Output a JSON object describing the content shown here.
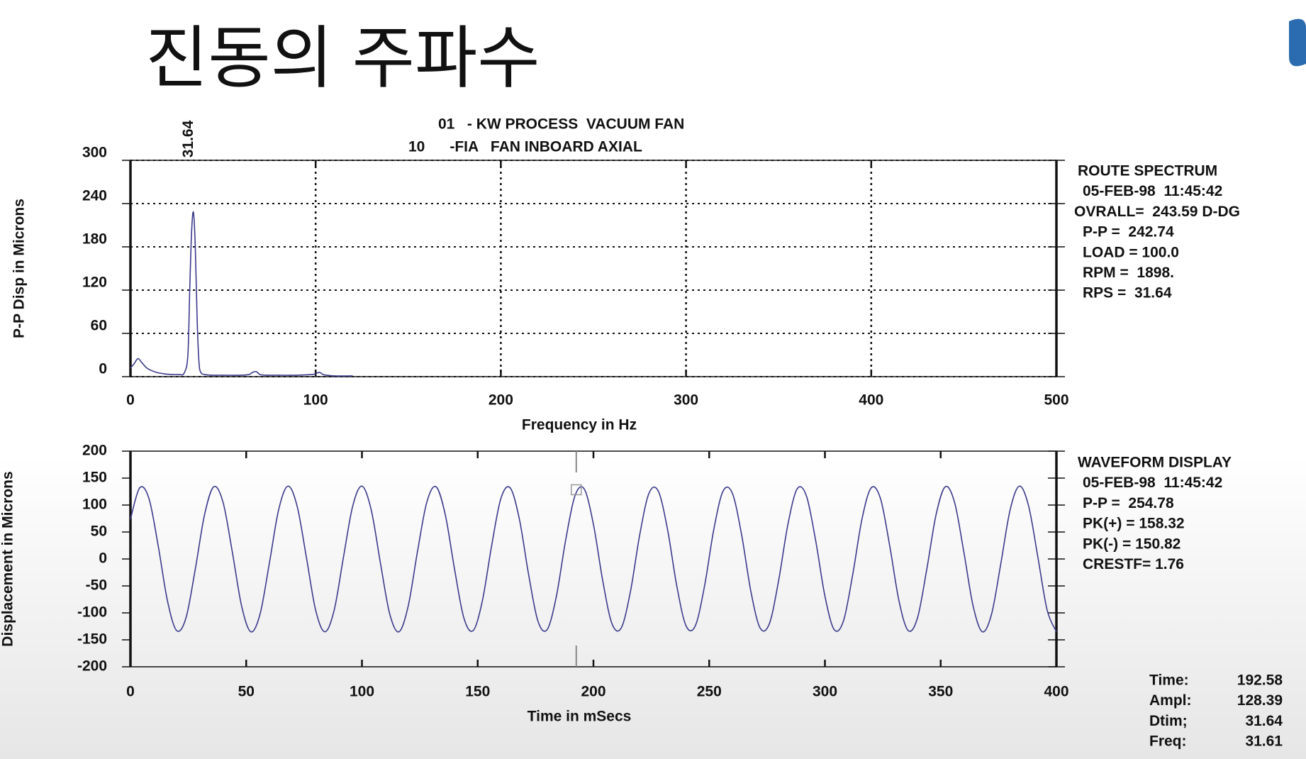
{
  "title": "진동의 주파수",
  "chart_data": [
    {
      "type": "line",
      "header": [
        "01   - KW PROCESS  VACUUM FAN",
        "10      -FIA   FAN INBOARD AXIAL"
      ],
      "ylabel": "P-P Disp in Microns",
      "xlabel": "Frequency in Hz",
      "xlim": [
        0,
        500
      ],
      "ylim": [
        0,
        300
      ],
      "xticks": [
        0,
        100,
        200,
        300,
        400,
        500
      ],
      "yticks": [
        0,
        60,
        120,
        180,
        240,
        300
      ],
      "grid": true,
      "color": "#3a3a8c",
      "peak": {
        "x": 31.64,
        "label": 31.64,
        "color": "#2e7d32"
      },
      "x": [
        0,
        2,
        4,
        6,
        8,
        10,
        14,
        18,
        22,
        26,
        29,
        31,
        32,
        33,
        34,
        35,
        36,
        37,
        38,
        40,
        44,
        50,
        60,
        64,
        66,
        68,
        70,
        74,
        80,
        90,
        98,
        100,
        102,
        104,
        106,
        110,
        120
      ],
      "values": [
        12,
        18,
        25,
        20,
        14,
        10,
        6,
        4,
        3,
        3,
        5,
        30,
        120,
        200,
        228,
        180,
        80,
        20,
        6,
        3,
        2,
        2,
        2,
        3,
        6,
        7,
        3,
        2,
        2,
        2,
        3,
        4,
        6,
        3,
        2,
        1,
        1
      ],
      "info": [
        "ROUTE SPECTRUM",
        "05-FEB-98  11:45:42",
        "OVRALL=  243.59 D-DG",
        "P-P =  242.74",
        "LOAD = 100.0",
        "RPM =  1898.",
        "RPS =  31.64"
      ]
    },
    {
      "type": "line",
      "ylabel": "Displacement in Microns",
      "xlabel": "Time in mSecs",
      "xlim": [
        0,
        400
      ],
      "ylim": [
        -200,
        200
      ],
      "xticks": [
        0,
        50,
        100,
        150,
        200,
        250,
        300,
        350,
        400
      ],
      "yticks": [
        -200,
        -150,
        -100,
        -50,
        0,
        50,
        100,
        150,
        200
      ],
      "grid": false,
      "color": "#3a3a8c",
      "x": [
        0,
        4,
        8,
        12,
        16,
        20,
        24,
        28,
        32,
        36,
        40,
        44,
        48,
        52,
        56,
        60,
        64,
        68,
        72,
        76,
        80,
        84,
        88,
        92,
        96,
        100,
        104,
        108,
        112,
        116,
        120,
        124,
        128,
        132,
        136,
        140,
        144,
        148,
        152,
        156,
        160,
        164,
        168,
        172,
        176,
        180,
        184,
        188,
        192,
        196,
        200,
        204,
        208,
        212,
        216,
        220,
        224,
        228,
        232,
        236,
        240,
        244,
        248,
        252,
        256,
        260,
        264,
        268,
        272,
        276,
        280,
        284,
        288,
        292,
        296,
        300,
        304,
        308,
        312,
        316,
        320,
        324,
        328,
        332,
        336,
        340,
        344,
        348,
        352,
        356,
        360,
        364,
        368,
        372,
        376,
        380,
        384,
        388,
        392,
        396,
        400
      ],
      "values": [
        74,
        132,
        112,
        24,
        -78,
        -133,
        -109,
        -19,
        82,
        134,
        105,
        13,
        -87,
        -135,
        -102,
        -8,
        91,
        135,
        98,
        3,
        -95,
        -135,
        -95,
        3,
        98,
        135,
        91,
        -8,
        -102,
        -135,
        -87,
        14,
        105,
        134,
        82,
        -19,
        -109,
        -133,
        -78,
        24,
        112,
        132,
        74,
        -29,
        -115,
        -131,
        -69,
        35,
        117,
        130,
        64,
        -40,
        -120,
        -128,
        -60,
        45,
        122,
        126,
        55,
        -50,
        -124,
        -124,
        -50,
        55,
        126,
        122,
        45,
        -60,
        -128,
        -120,
        -40,
        64,
        130,
        117,
        34,
        -69,
        -131,
        -115,
        -29,
        74,
        132,
        112,
        24,
        -78,
        -133,
        -109,
        -19,
        82,
        134,
        105,
        13,
        -87,
        -135,
        -102,
        -8,
        91,
        135,
        98,
        3,
        -95,
        -135
      ],
      "info": [
        "WAVEFORM DISPLAY",
        "05-FEB-98  11:45:42",
        "P-P =  254.78",
        "PK(+) = 158.32",
        "PK(-) = 150.82",
        "CRESTF= 1.76"
      ]
    }
  ],
  "cursor": {
    "labels": [
      "Time:",
      "Ampl:",
      "Dtim;",
      "Freq:"
    ],
    "values": [
      192.58,
      128.39,
      31.64,
      31.61
    ],
    "color": "#c0282d"
  }
}
